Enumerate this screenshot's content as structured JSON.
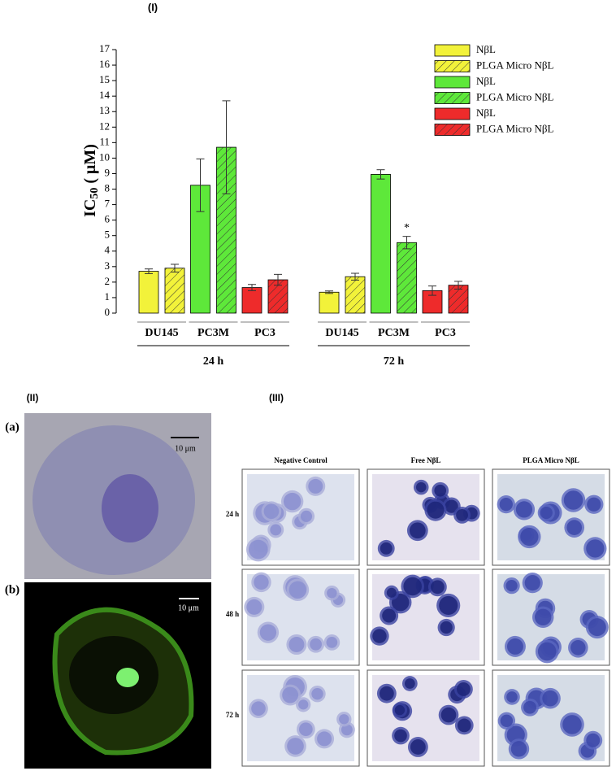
{
  "chart_data": {
    "type": "bar",
    "title": "(I)",
    "ylabel": {
      "main": "IC",
      "sub": "50",
      "unit": " ( μM)"
    },
    "categories": [
      "DU145",
      "PC3M",
      "PC3",
      "DU145",
      "PC3M",
      "PC3"
    ],
    "groups": [
      "24 h",
      "72 h"
    ],
    "ylim": [
      0,
      17
    ],
    "yticks": [
      0,
      1,
      2,
      3,
      4,
      5,
      6,
      7,
      8,
      9,
      10,
      11,
      12,
      13,
      14,
      15,
      16,
      17
    ],
    "series": [
      {
        "name": "NβL",
        "color": "#f2f23a",
        "hatch": false,
        "values": [
          2.7,
          null,
          null,
          1.35,
          null,
          null
        ],
        "errors": [
          0.15,
          null,
          null,
          0.08,
          null,
          null
        ]
      },
      {
        "name": "PLGA Micro NβL",
        "color": "#f2f23a",
        "hatch": true,
        "values": [
          2.9,
          null,
          null,
          2.35,
          null,
          null
        ],
        "errors": [
          0.25,
          null,
          null,
          0.22,
          null,
          null
        ]
      },
      {
        "name": "NβL",
        "color": "#5ee83a",
        "hatch": false,
        "values": [
          null,
          8.25,
          null,
          null,
          8.95,
          null
        ],
        "errors": [
          null,
          1.7,
          null,
          null,
          0.3,
          null
        ]
      },
      {
        "name": "PLGA Micro NβL",
        "color": "#5ee83a",
        "hatch": true,
        "values": [
          null,
          10.7,
          null,
          null,
          4.55,
          null
        ],
        "errors": [
          null,
          3.0,
          null,
          null,
          0.4,
          null
        ],
        "value_annotations": [
          null,
          null,
          null,
          null,
          "*",
          null
        ]
      },
      {
        "name": "NβL",
        "color": "#ee2b2b",
        "hatch": false,
        "values": [
          null,
          null,
          1.65,
          null,
          null,
          1.45
        ],
        "errors": [
          null,
          null,
          0.2,
          null,
          null,
          0.3
        ]
      },
      {
        "name": "PLGA Micro NβL",
        "color": "#ee2b2b",
        "hatch": true,
        "values": [
          null,
          null,
          2.15,
          null,
          null,
          1.8
        ],
        "errors": [
          null,
          null,
          0.35,
          null,
          null,
          0.25
        ]
      }
    ]
  },
  "panels": {
    "ii": {
      "label": "(II)",
      "a": "(a)",
      "b": "(b)",
      "scale_a": "10 μm",
      "scale_b": "10 μm"
    },
    "iii": {
      "label": "(III)",
      "columns": [
        "Negative Control",
        "Free NβL",
        "PLGA Micro NβL"
      ],
      "rows": [
        "24 h",
        "48 h",
        "72 h"
      ]
    }
  }
}
